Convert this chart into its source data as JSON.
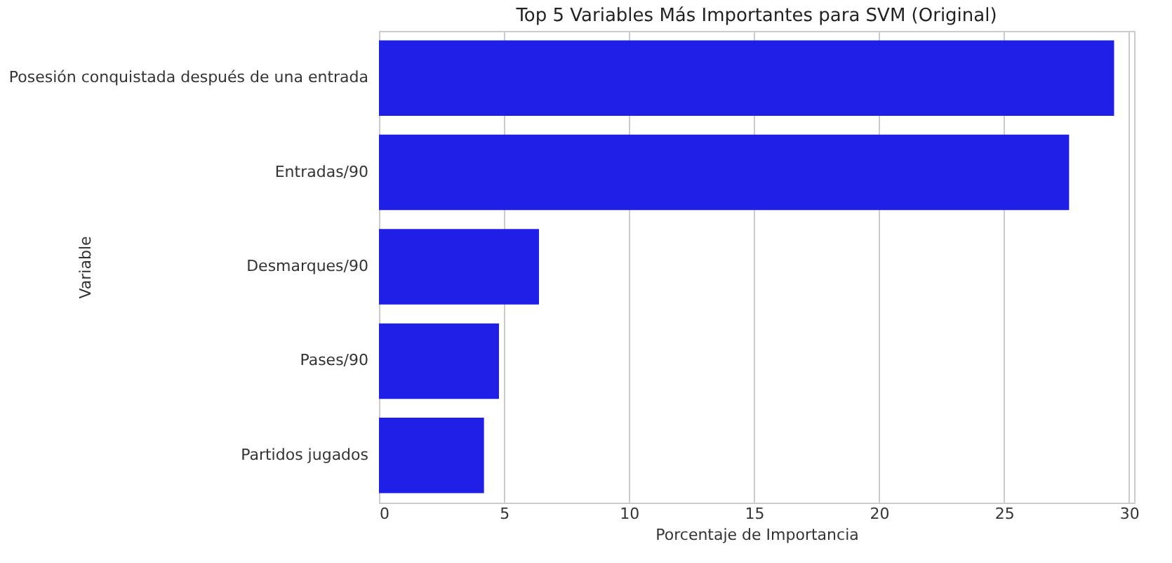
{
  "chart_data": {
    "type": "bar",
    "orientation": "horizontal",
    "title": "Top 5 Variables Más Importantes para SVM (Original)",
    "xlabel": "Porcentaje de Importancia",
    "ylabel": "Variable",
    "categories": [
      "Posesión conquistada después de una entrada",
      "Entradas/90",
      "Desmarques/90",
      "Pases/90",
      "Partidos jugados"
    ],
    "values": [
      29.4,
      27.6,
      6.4,
      4.8,
      4.2
    ],
    "color": "#1f1fe8",
    "xlim": [
      0,
      30.2
    ],
    "xticks": [
      0,
      5,
      10,
      15,
      20,
      25,
      30
    ],
    "grid": "x"
  }
}
